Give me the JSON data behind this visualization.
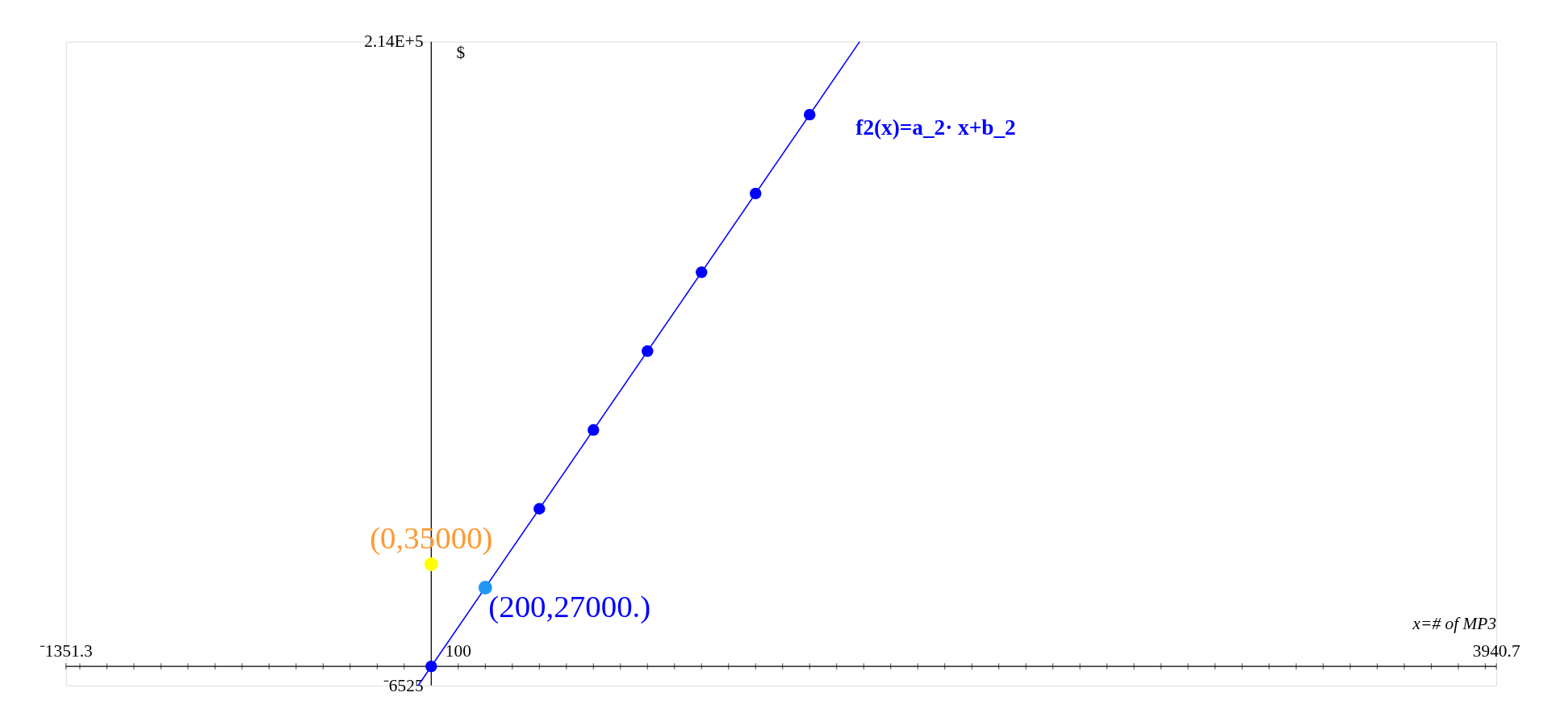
{
  "chart_data": {
    "type": "scatter",
    "xlabel": "x=# of MP3",
    "ylabel": "$",
    "xlim": [
      -1351.3,
      3940.7
    ],
    "ylim": [
      -6525,
      214000
    ],
    "xticks": [
      {
        "value": -1351.3,
        "label": "⁻1351.3"
      },
      {
        "value": -1300,
        "label": null
      },
      {
        "value": -1200,
        "label": null
      },
      {
        "value": -1100,
        "label": null
      },
      {
        "value": -1000,
        "label": null
      },
      {
        "value": -900,
        "label": null
      },
      {
        "value": -800,
        "label": null
      },
      {
        "value": -700,
        "label": null
      },
      {
        "value": -600,
        "label": null
      },
      {
        "value": -500,
        "label": null
      },
      {
        "value": -400,
        "label": null
      },
      {
        "value": -300,
        "label": null
      },
      {
        "value": -200,
        "label": null
      },
      {
        "value": -100,
        "label": null
      },
      {
        "value": 100,
        "label": "100"
      },
      {
        "value": 200,
        "label": null
      },
      {
        "value": 300,
        "label": null
      },
      {
        "value": 400,
        "label": null
      },
      {
        "value": 500,
        "label": null
      },
      {
        "value": 600,
        "label": null
      },
      {
        "value": 700,
        "label": null
      },
      {
        "value": 800,
        "label": null
      },
      {
        "value": 900,
        "label": null
      },
      {
        "value": 1000,
        "label": null
      },
      {
        "value": 1100,
        "label": null
      },
      {
        "value": 1200,
        "label": null
      },
      {
        "value": 1300,
        "label": null
      },
      {
        "value": 1400,
        "label": null
      },
      {
        "value": 1500,
        "label": null
      },
      {
        "value": 1600,
        "label": null
      },
      {
        "value": 1700,
        "label": null
      },
      {
        "value": 1800,
        "label": null
      },
      {
        "value": 1900,
        "label": null
      },
      {
        "value": 2000,
        "label": null
      },
      {
        "value": 2100,
        "label": null
      },
      {
        "value": 2200,
        "label": null
      },
      {
        "value": 2300,
        "label": null
      },
      {
        "value": 2400,
        "label": null
      },
      {
        "value": 2500,
        "label": null
      },
      {
        "value": 2600,
        "label": null
      },
      {
        "value": 2700,
        "label": null
      },
      {
        "value": 2800,
        "label": null
      },
      {
        "value": 2900,
        "label": null
      },
      {
        "value": 3000,
        "label": null
      },
      {
        "value": 3100,
        "label": null
      },
      {
        "value": 3200,
        "label": null
      },
      {
        "value": 3300,
        "label": null
      },
      {
        "value": 3400,
        "label": null
      },
      {
        "value": 3500,
        "label": null
      },
      {
        "value": 3600,
        "label": null
      },
      {
        "value": 3700,
        "label": null
      },
      {
        "value": 3800,
        "label": null
      },
      {
        "value": 3900,
        "label": null
      },
      {
        "value": 3940.7,
        "label": "3940.7"
      }
    ],
    "yticks": [
      {
        "value": -6525,
        "label": "⁻6525"
      },
      {
        "value": 214000,
        "label": "2.14E+5"
      }
    ],
    "grid": false,
    "marker": "circle",
    "series": [
      {
        "name": "f2(x)=a_2· x+b_2",
        "type": "line",
        "marker": "none",
        "color": "#0000ff",
        "x": [
          -48,
          1585
        ],
        "values": [
          -6500,
          214000
        ]
      },
      {
        "color": "#0000ff",
        "x": [
          400,
          600,
          800,
          1000,
          1200,
          1400
        ],
        "values": [
          54000,
          81000,
          108000,
          135000,
          162000,
          189000
        ]
      },
      {
        "color": "#ffff00",
        "x": [
          0
        ],
        "values": [
          35000
        ]
      },
      {
        "color": "#2196f3",
        "x": [
          200
        ],
        "values": [
          27000
        ]
      },
      {
        "color": "#0000ff",
        "x": [
          0
        ],
        "values": [
          0
        ]
      }
    ],
    "annotations": [
      {
        "text": "(0,35000)",
        "x": 0,
        "y": 35000
      },
      {
        "text": "(200,27000.)",
        "x": 200,
        "y": 27000
      }
    ]
  }
}
